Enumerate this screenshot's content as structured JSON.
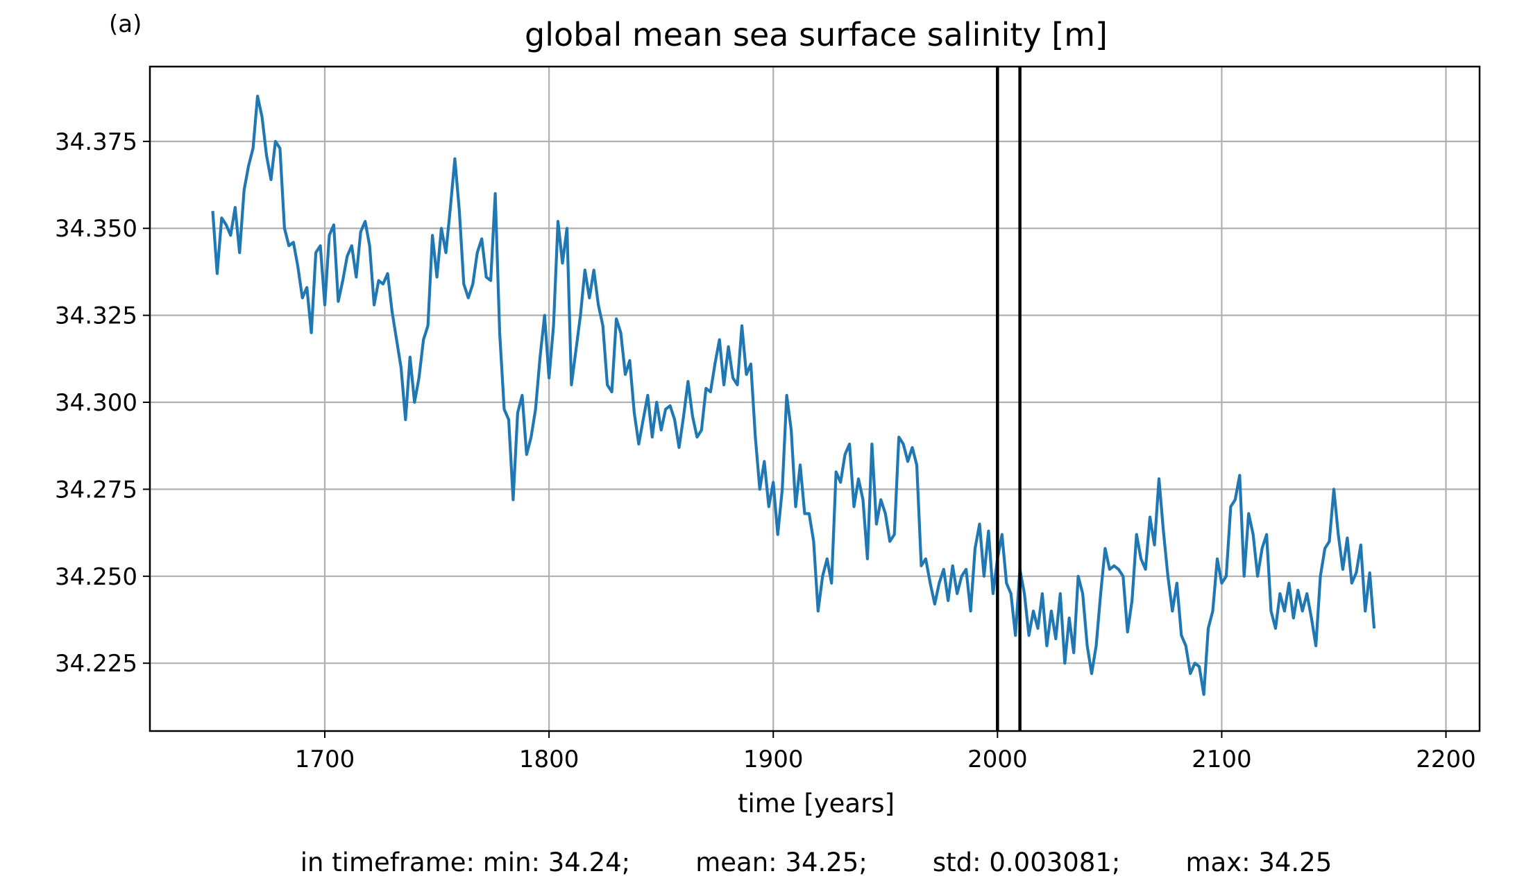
{
  "panel_label": "(a)",
  "stats_line": "in timeframe: min: 34.24;        mean: 34.25;        std: 0.003081;        max: 34.25",
  "colors": {
    "series": "#1f77b4",
    "grid": "#b0b0b0",
    "vline": "#000000"
  },
  "chart_data": {
    "type": "line",
    "title": "global mean sea surface salinity [m]",
    "xlabel": "time [years]",
    "ylabel": "",
    "xlim": [
      1622,
      2215
    ],
    "ylim": [
      34.2055,
      34.3965
    ],
    "xticks": [
      1700,
      1800,
      1900,
      2000,
      2100,
      2200
    ],
    "yticks": [
      34.225,
      34.25,
      34.275,
      34.3,
      34.325,
      34.35,
      34.375
    ],
    "ytick_labels": [
      "34.225",
      "34.250",
      "34.275",
      "34.300",
      "34.325",
      "34.350",
      "34.375"
    ],
    "grid": true,
    "legend": "none",
    "vlines": [
      2000,
      2010
    ],
    "series": [
      {
        "x_start": 1650,
        "x_step": 2,
        "y": [
          34.355,
          34.337,
          34.353,
          34.351,
          34.348,
          34.356,
          34.343,
          34.361,
          34.368,
          34.373,
          34.388,
          34.382,
          34.371,
          34.364,
          34.375,
          34.373,
          34.35,
          34.345,
          34.346,
          34.339,
          34.33,
          34.333,
          34.32,
          34.343,
          34.345,
          34.328,
          34.348,
          34.351,
          34.329,
          34.335,
          34.342,
          34.345,
          34.336,
          34.349,
          34.352,
          34.345,
          34.328,
          34.335,
          34.334,
          34.337,
          34.326,
          34.318,
          34.31,
          34.295,
          34.313,
          34.3,
          34.307,
          34.318,
          34.322,
          34.348,
          34.336,
          34.35,
          34.343,
          34.356,
          34.37,
          34.355,
          34.334,
          34.33,
          34.334,
          34.343,
          34.347,
          34.336,
          34.335,
          34.36,
          34.32,
          34.298,
          34.295,
          34.272,
          34.297,
          34.302,
          34.285,
          34.29,
          34.298,
          34.313,
          34.325,
          34.307,
          34.322,
          34.352,
          34.34,
          34.35,
          34.305,
          34.315,
          34.325,
          34.338,
          34.33,
          34.338,
          34.328,
          34.322,
          34.305,
          34.303,
          34.324,
          34.32,
          34.308,
          34.312,
          34.297,
          34.288,
          34.295,
          34.302,
          34.29,
          34.3,
          34.292,
          34.298,
          34.299,
          34.295,
          34.287,
          34.296,
          34.306,
          34.296,
          34.29,
          34.292,
          34.304,
          34.303,
          34.311,
          34.318,
          34.305,
          34.316,
          34.307,
          34.305,
          34.322,
          34.308,
          34.311,
          34.29,
          34.275,
          34.283,
          34.27,
          34.277,
          34.262,
          34.275,
          34.302,
          34.292,
          34.27,
          34.282,
          34.268,
          34.268,
          34.26,
          34.24,
          34.25,
          34.255,
          34.248,
          34.28,
          34.277,
          34.285,
          34.288,
          34.27,
          34.278,
          34.272,
          34.255,
          34.288,
          34.265,
          34.272,
          34.268,
          34.26,
          34.262,
          34.29,
          34.288,
          34.283,
          34.287,
          34.282,
          34.253,
          34.255,
          34.248,
          34.242,
          34.248,
          34.252,
          34.243,
          34.253,
          34.245,
          34.25,
          34.252,
          34.24,
          34.258,
          34.265,
          34.25,
          34.263,
          34.245,
          34.255,
          34.262,
          34.248,
          34.245,
          34.233,
          34.252,
          34.245,
          34.233,
          34.24,
          34.235,
          34.245,
          34.23,
          34.24,
          34.232,
          34.245,
          34.225,
          34.238,
          34.228,
          34.25,
          34.245,
          34.23,
          34.222,
          34.23,
          34.245,
          34.258,
          34.252,
          34.253,
          34.252,
          34.25,
          34.234,
          34.243,
          34.262,
          34.255,
          34.252,
          34.267,
          34.259,
          34.278,
          34.263,
          34.25,
          34.24,
          34.248,
          34.233,
          34.23,
          34.222,
          34.225,
          34.224,
          34.216,
          34.235,
          34.24,
          34.255,
          34.248,
          34.25,
          34.27,
          34.272,
          34.279,
          34.25,
          34.268,
          34.262,
          34.25,
          34.258,
          34.262,
          34.24,
          34.235,
          34.245,
          34.24,
          34.248,
          34.238,
          34.246,
          34.24,
          34.245,
          34.238,
          34.23,
          34.25,
          34.258,
          34.26,
          34.275,
          34.262,
          34.252,
          34.261,
          34.248,
          34.251,
          34.259,
          34.24,
          34.251,
          34.235
        ]
      }
    ]
  }
}
